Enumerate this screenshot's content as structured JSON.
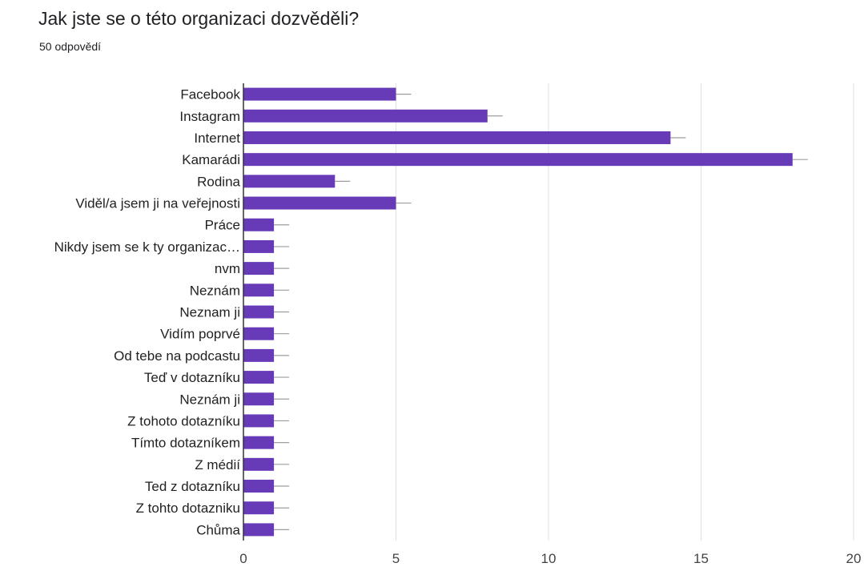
{
  "header": {
    "title": "Jak jste se o této organizaci dozvěděli?",
    "subtitle": "50 odpovědí"
  },
  "colors": {
    "bar": "#673ab7",
    "grid": "#e0e0e0",
    "axis": "#333333",
    "whisker": "#9e9e9e"
  },
  "chart_data": {
    "type": "bar",
    "orientation": "horizontal",
    "title": "Jak jste se o této organizaci dozvěděli?",
    "subtitle": "50 odpovědí",
    "categories": [
      "Facebook",
      "Instagram",
      "Internet",
      "Kamarádi",
      "Rodina",
      "Viděl/a jsem ji na veřejnosti",
      "Práce",
      "Nikdy jsem se k ty organizac…",
      "nvm",
      "Neznám",
      "Neznam ji",
      "Vidím poprvé",
      "Od tebe na podcastu",
      "Teď v dotazníku",
      "Neznám ji",
      "Z tohoto dotazníku",
      "Tímto dotazníkem",
      "Z médií",
      "Ted z dotazníku",
      "Z tohto dotazniku",
      "Chůma"
    ],
    "values": [
      5,
      8,
      14,
      18,
      3,
      5,
      1,
      1,
      1,
      1,
      1,
      1,
      1,
      1,
      1,
      1,
      1,
      1,
      1,
      1,
      1
    ],
    "xlim": [
      0,
      20
    ],
    "xticks": [
      "0",
      "5",
      "10",
      "15",
      "20"
    ],
    "grid": true
  }
}
